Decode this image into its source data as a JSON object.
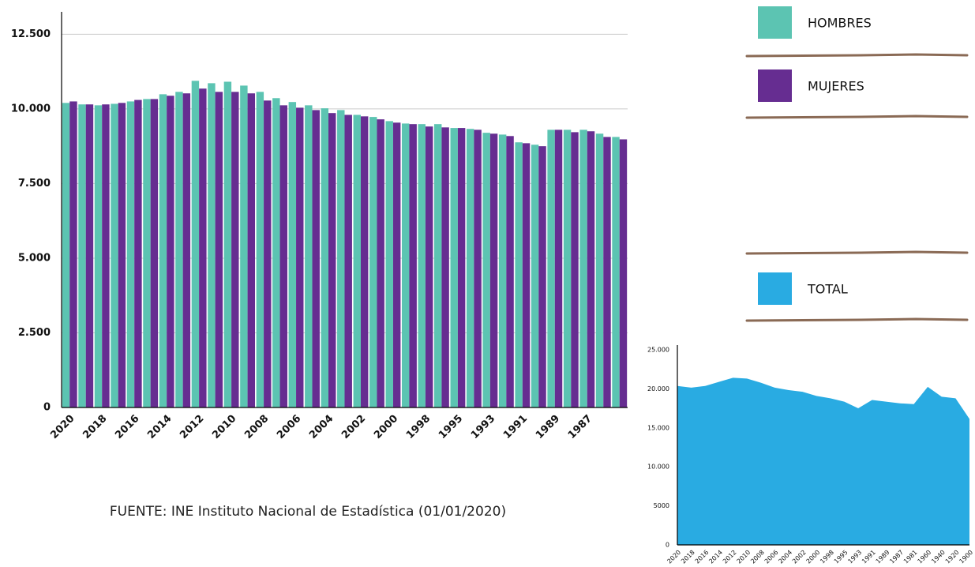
{
  "chart_data": [
    {
      "type": "bar",
      "categories": [
        "2020",
        null,
        "2018",
        null,
        "2016",
        null,
        "2014",
        null,
        "2012",
        null,
        "2010",
        null,
        "2008",
        null,
        "2006",
        null,
        "2004",
        null,
        "2002",
        null,
        "2000",
        null,
        "1998",
        null,
        "1995",
        null,
        "1993",
        null,
        "1991",
        null,
        "1989",
        null,
        "1987",
        null,
        null
      ],
      "series": [
        {
          "name": "HOMBRES",
          "color": "#5cc4b2",
          "values": [
            10200,
            10150,
            10120,
            10170,
            10250,
            10330,
            10490,
            10570,
            10940,
            10860,
            10910,
            10780,
            10570,
            10360,
            10230,
            10120,
            10020,
            9960,
            9800,
            9730,
            9590,
            9510,
            9490,
            9490,
            9360,
            9330,
            9200,
            9140,
            8880,
            8800,
            9300,
            9300,
            9300,
            9170,
            9060
          ]
        },
        {
          "name": "MUJERES",
          "color": "#662d91",
          "values": [
            10250,
            10150,
            10150,
            10200,
            10300,
            10330,
            10440,
            10520,
            10680,
            10570,
            10570,
            10520,
            10280,
            10120,
            10040,
            9960,
            9860,
            9800,
            9750,
            9650,
            9540,
            9490,
            9410,
            9380,
            9360,
            9300,
            9170,
            9090,
            8850,
            8750,
            9300,
            9220,
            9250,
            9060,
            8980
          ]
        }
      ],
      "ylim": [
        0,
        13250
      ],
      "yticks": [
        0,
        {
          "value": 2500,
          "label": "2.500"
        },
        {
          "value": 5000,
          "label": "5.000"
        },
        {
          "value": 7500,
          "label": "7.500"
        },
        {
          "value": 10000,
          "label": "10.000"
        },
        {
          "value": 12500,
          "label": "12.500"
        }
      ],
      "grid": true
    },
    {
      "type": "area",
      "categories": [
        "2020",
        "2018",
        "2016",
        "2014",
        "2012",
        "2010",
        "2008",
        "2006",
        "2004",
        "2002",
        "2000",
        "1998",
        "1995",
        "1993",
        "1991",
        "1989",
        "1987",
        "1981",
        "1960",
        "1940",
        "1920",
        "1900"
      ],
      "series": [
        {
          "name": "TOTAL",
          "color": "#29abe2",
          "values": [
            20360,
            20150,
            20360,
            20890,
            21410,
            21310,
            20780,
            20150,
            19830,
            19620,
            19090,
            18780,
            18350,
            17510,
            18570,
            18350,
            18140,
            18040,
            20250,
            18990,
            18780,
            16140
          ]
        }
      ],
      "ylim": [
        0,
        25600
      ],
      "yticks": [
        0,
        5000,
        {
          "value": 10000,
          "label": "10.000"
        },
        {
          "value": 15000,
          "label": "15.000"
        },
        {
          "value": 20000,
          "label": "20.000"
        },
        {
          "value": 25000,
          "label": "25.000"
        }
      ],
      "grid": false
    }
  ],
  "source": "FUENTE: INE Instituto Nacional de Estadística (01/01/2020)"
}
